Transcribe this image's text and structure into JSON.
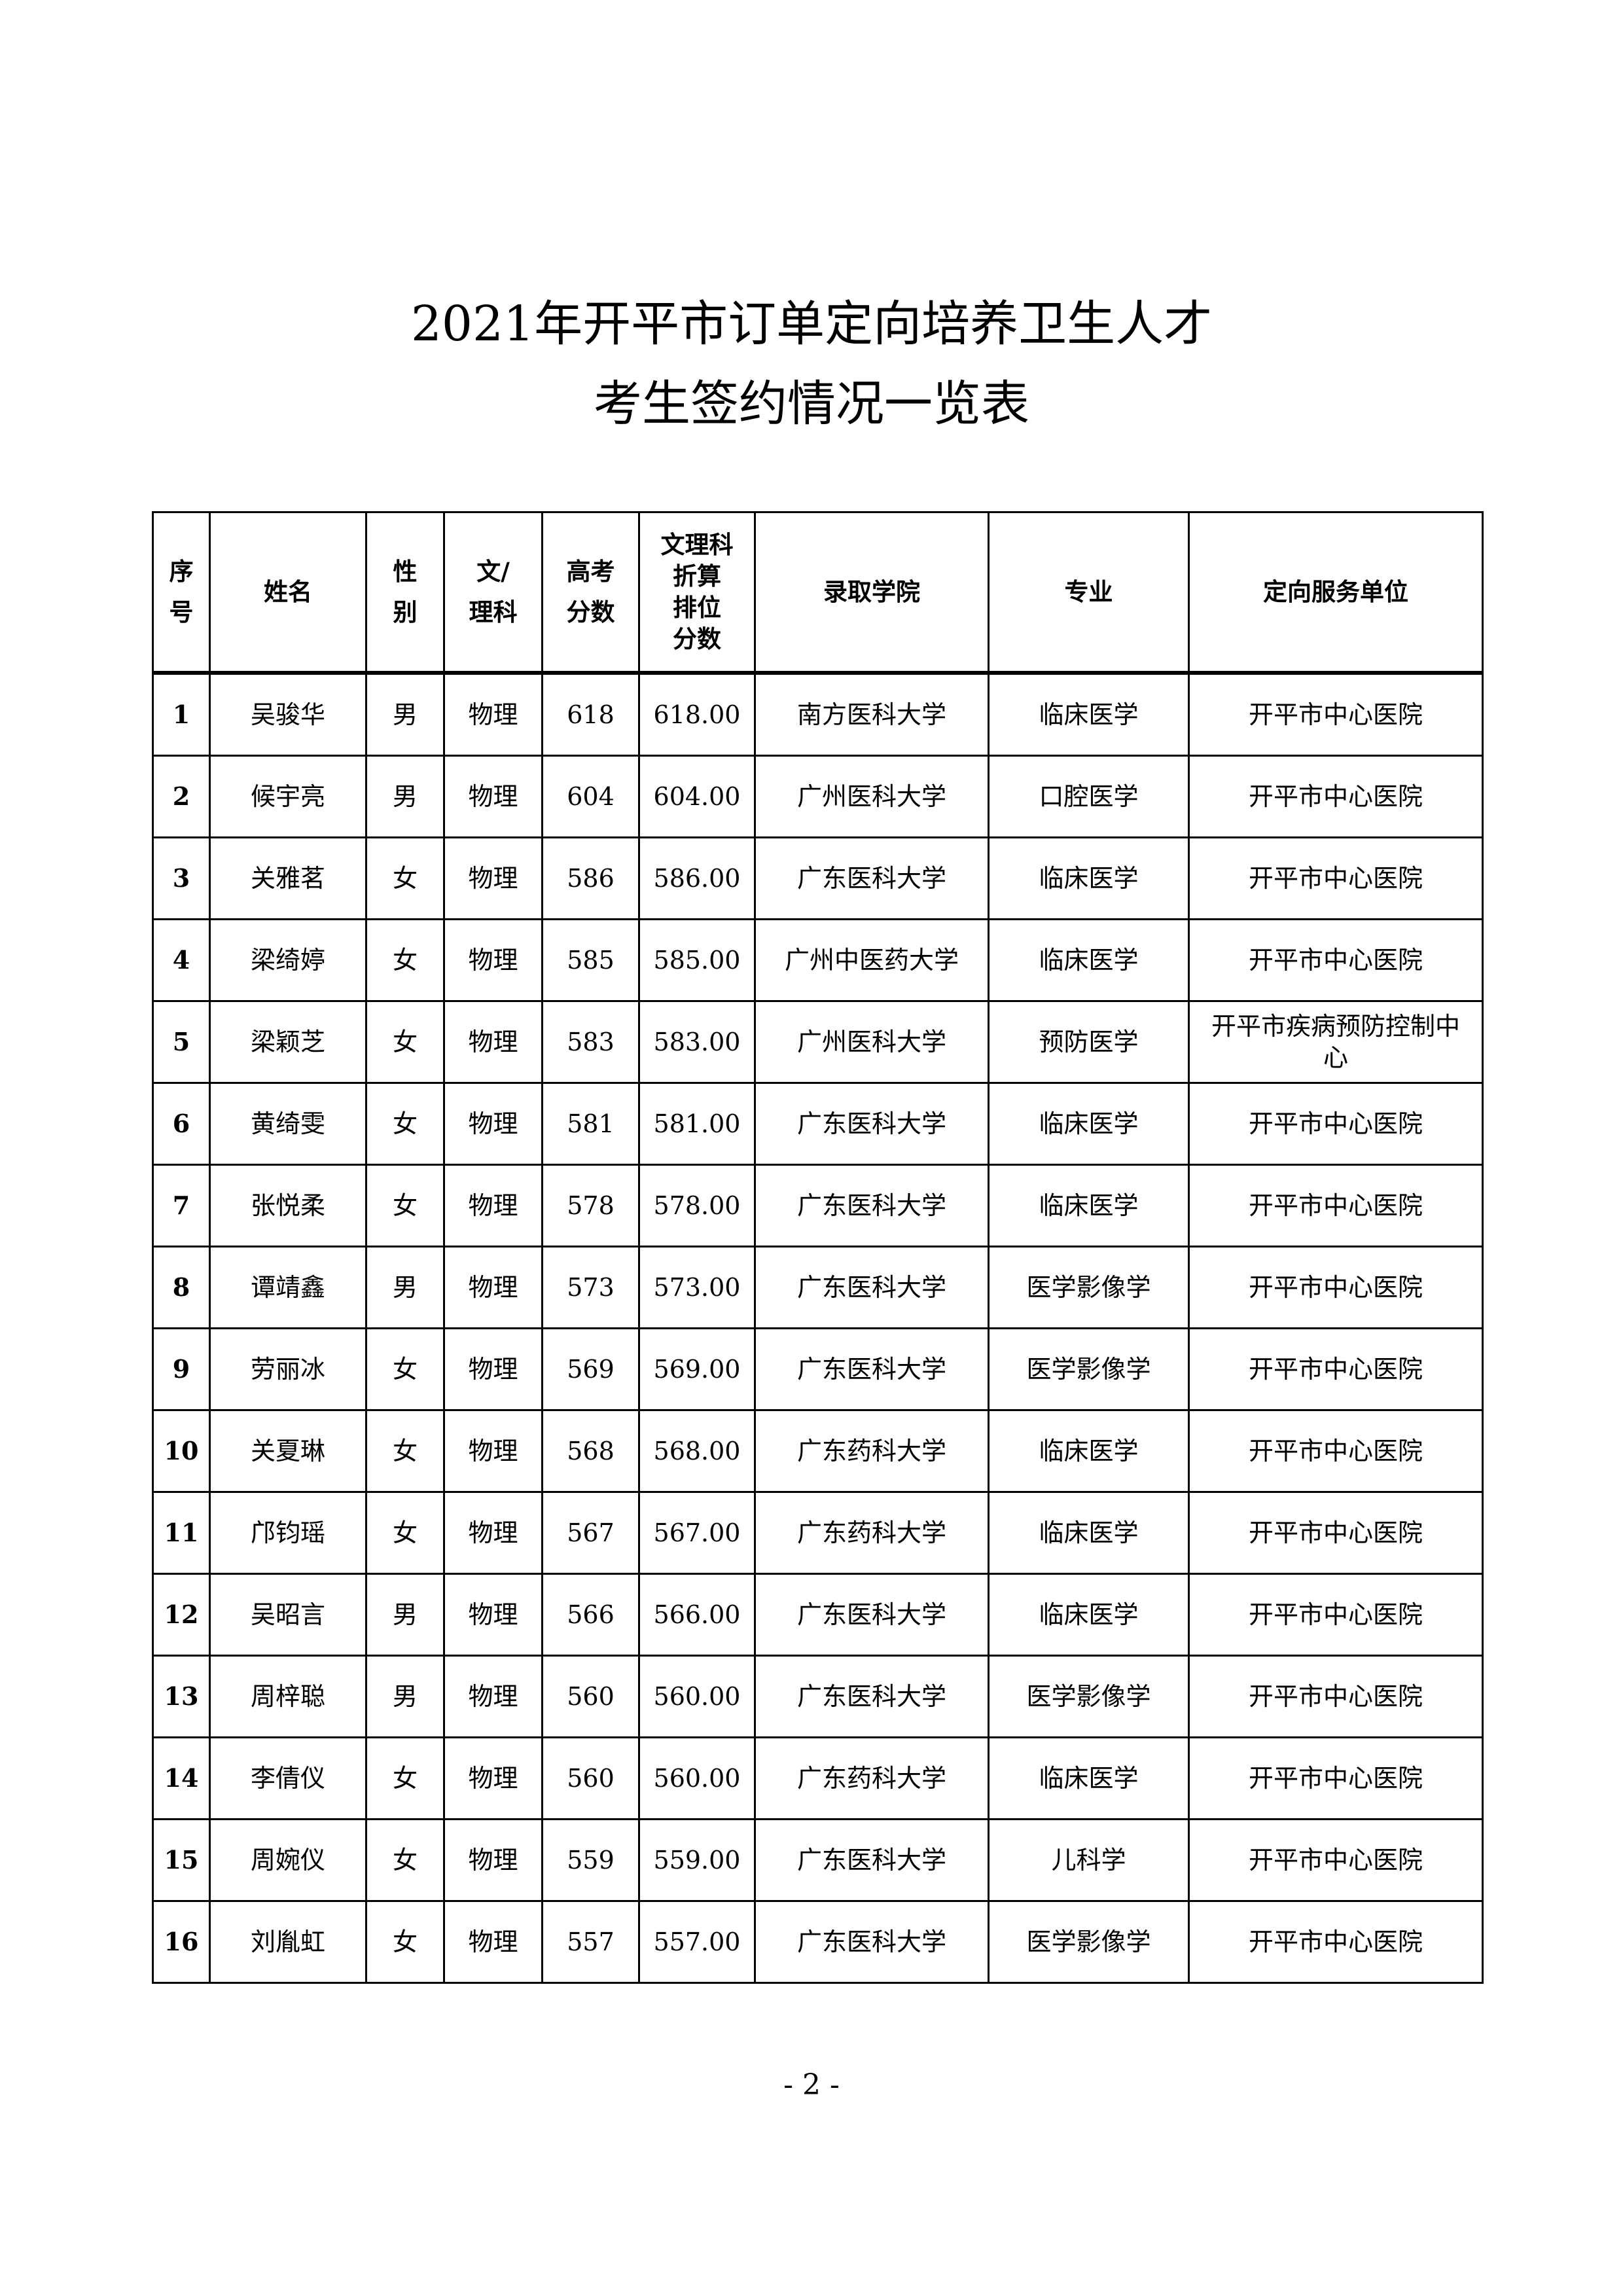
{
  "title_line1": "2021年开平市订单定向培养卫生人才",
  "title_line2": "考生签约情况一览表",
  "table": {
    "headers": [
      "序\n号",
      "姓名",
      "性\n别",
      "文/\n理科",
      "高考\n分数",
      "文理科\n折算\n排位\n分数",
      "录取学院",
      "专业",
      "定向服务单位"
    ],
    "rows": [
      [
        "1",
        "吴骏华",
        "男",
        "物理",
        "618",
        "618.00",
        "南方医科大学",
        "临床医学",
        "开平市中心医院"
      ],
      [
        "2",
        "候宇亮",
        "男",
        "物理",
        "604",
        "604.00",
        "广州医科大学",
        "口腔医学",
        "开平市中心医院"
      ],
      [
        "3",
        "关雅茗",
        "女",
        "物理",
        "586",
        "586.00",
        "广东医科大学",
        "临床医学",
        "开平市中心医院"
      ],
      [
        "4",
        "梁绮婷",
        "女",
        "物理",
        "585",
        "585.00",
        "广州中医药大学",
        "临床医学",
        "开平市中心医院"
      ],
      [
        "5",
        "梁颖芝",
        "女",
        "物理",
        "583",
        "583.00",
        "广州医科大学",
        "预防医学",
        "开平市疾病预防控制中心"
      ],
      [
        "6",
        "黄绮雯",
        "女",
        "物理",
        "581",
        "581.00",
        "广东医科大学",
        "临床医学",
        "开平市中心医院"
      ],
      [
        "7",
        "张悦柔",
        "女",
        "物理",
        "578",
        "578.00",
        "广东医科大学",
        "临床医学",
        "开平市中心医院"
      ],
      [
        "8",
        "谭靖鑫",
        "男",
        "物理",
        "573",
        "573.00",
        "广东医科大学",
        "医学影像学",
        "开平市中心医院"
      ],
      [
        "9",
        "劳丽冰",
        "女",
        "物理",
        "569",
        "569.00",
        "广东医科大学",
        "医学影像学",
        "开平市中心医院"
      ],
      [
        "10",
        "关夏琳",
        "女",
        "物理",
        "568",
        "568.00",
        "广东药科大学",
        "临床医学",
        "开平市中心医院"
      ],
      [
        "11",
        "邝钧瑶",
        "女",
        "物理",
        "567",
        "567.00",
        "广东药科大学",
        "临床医学",
        "开平市中心医院"
      ],
      [
        "12",
        "吴昭言",
        "男",
        "物理",
        "566",
        "566.00",
        "广东医科大学",
        "临床医学",
        "开平市中心医院"
      ],
      [
        "13",
        "周梓聪",
        "男",
        "物理",
        "560",
        "560.00",
        "广东医科大学",
        "医学影像学",
        "开平市中心医院"
      ],
      [
        "14",
        "李倩仪",
        "女",
        "物理",
        "560",
        "560.00",
        "广东药科大学",
        "临床医学",
        "开平市中心医院"
      ],
      [
        "15",
        "周婉仪",
        "女",
        "物理",
        "559",
        "559.00",
        "广东医科大学",
        "儿科学",
        "开平市中心医院"
      ],
      [
        "16",
        "刘胤虹",
        "女",
        "物理",
        "557",
        "557.00",
        "广东医科大学",
        "医学影像学",
        "开平市中心医院"
      ]
    ]
  },
  "page_number": "- 2 -"
}
